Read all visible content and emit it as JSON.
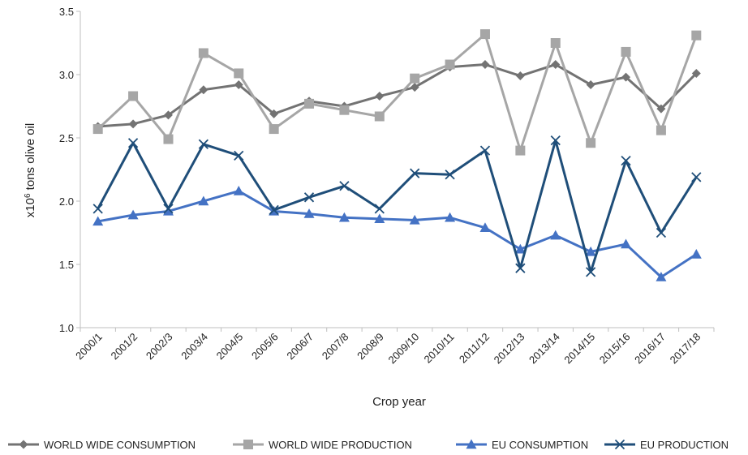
{
  "chart_data": {
    "type": "line",
    "title": "",
    "xlabel": "Crop year",
    "ylabel_prefix": "x10",
    "ylabel_exponent": "6",
    "ylabel_suffix": " tons olive oil",
    "ylim": [
      1.0,
      3.5
    ],
    "yticks": [
      "1.0",
      "1.5",
      "2.0",
      "2.5",
      "3.0",
      "3.5"
    ],
    "grid": false,
    "legend_position": "bottom",
    "categories": [
      "2000/1",
      "2001/2",
      "2002/3",
      "2003/4",
      "2004/5",
      "2005/6",
      "2006/7",
      "2007/8",
      "2008/9",
      "2009/10",
      "2010/11",
      "2011/12",
      "2012/13",
      "2013/14",
      "2014/15",
      "2015/16",
      "2016/17",
      "2017/18"
    ],
    "series": [
      {
        "name": "WORLD WIDE CONSUMPTION",
        "color": "#737373",
        "marker": "diamond",
        "values": [
          2.59,
          2.61,
          2.68,
          2.88,
          2.92,
          2.69,
          2.79,
          2.75,
          2.83,
          2.9,
          3.06,
          3.08,
          2.99,
          3.08,
          2.92,
          2.98,
          2.73,
          3.01
        ]
      },
      {
        "name": "WORLD WIDE PRODUCTION",
        "color": "#a6a6a6",
        "marker": "square",
        "values": [
          2.57,
          2.83,
          2.49,
          3.17,
          3.01,
          2.57,
          2.77,
          2.72,
          2.67,
          2.97,
          3.08,
          3.32,
          2.4,
          3.25,
          2.46,
          3.18,
          2.56,
          3.31
        ]
      },
      {
        "name": "EU CONSUMPTION",
        "color": "#4472c4",
        "marker": "triangle",
        "values": [
          1.84,
          1.89,
          1.92,
          2.0,
          2.08,
          1.92,
          1.9,
          1.87,
          1.86,
          1.85,
          1.87,
          1.79,
          1.62,
          1.73,
          1.6,
          1.66,
          1.4,
          1.58
        ]
      },
      {
        "name": "EU PRODUCTION",
        "color": "#1f4e79",
        "marker": "x",
        "values": [
          1.94,
          2.46,
          1.94,
          2.45,
          2.36,
          1.93,
          2.03,
          2.12,
          1.94,
          2.22,
          2.21,
          2.4,
          1.47,
          2.48,
          1.44,
          2.32,
          1.75,
          2.19
        ]
      }
    ]
  }
}
